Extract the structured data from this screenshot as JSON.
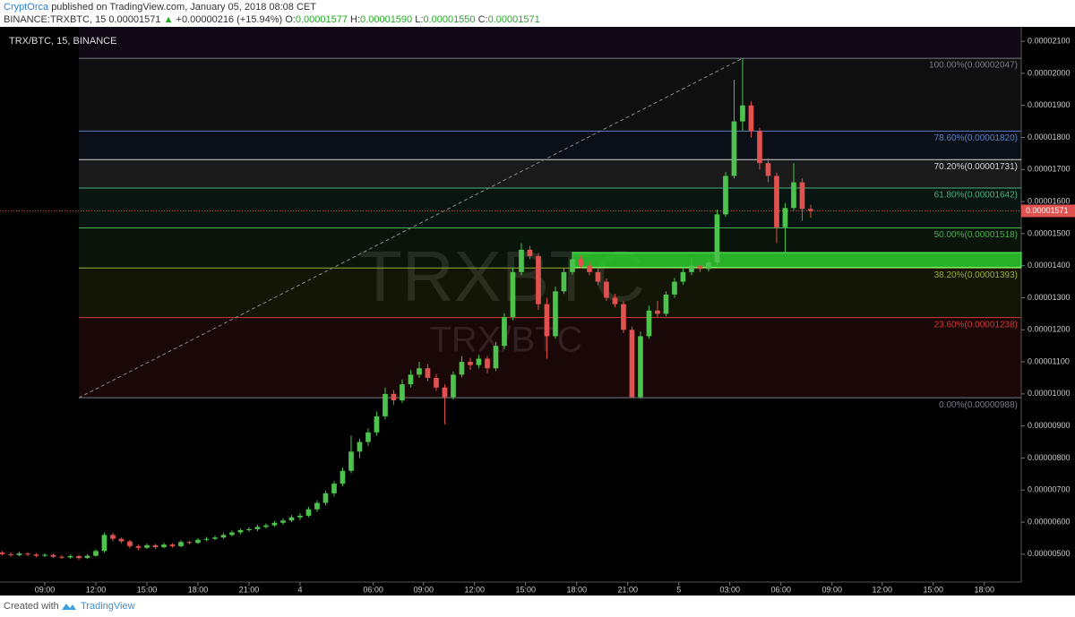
{
  "header": {
    "author": "CryptOrca",
    "published": "published on TradingView.com, January 05, 2018 08:08 CET",
    "symbol": "BINANCE:TRXBTC, 15",
    "last": "0.00001571",
    "arrow": "▲",
    "change": "+0.00000216 (+15.94%)",
    "o_key": "O:",
    "o": "0.00001577",
    "h_key": "H:",
    "h": "0.00001590",
    "l_key": "L:",
    "l": "0.00001550",
    "c_key": "C:",
    "c": "0.00001571"
  },
  "footer": {
    "created": "Created with",
    "brand": "TradingView"
  },
  "chart_data": {
    "type": "candlestick",
    "title": "TRX/BTC, 15, BINANCE",
    "watermark": "TRXBTC",
    "watermark_sub": "TRX/BTC",
    "up_color": "#4ec24e",
    "down_color": "#e0524f",
    "candles": [
      [
        5.05e-06,
        5.1e-06,
        4.96e-06,
        5e-06
      ],
      [
        5e-06,
        5.06e-06,
        4.92e-06,
        4.97e-06
      ],
      [
        4.97e-06,
        5.08e-06,
        4.94e-06,
        5.02e-06
      ],
      [
        5.02e-06,
        5.06e-06,
        4.94e-06,
        4.99e-06
      ],
      [
        4.99e-06,
        5.03e-06,
        4.9e-06,
        4.95e-06
      ],
      [
        4.95e-06,
        5.03e-06,
        4.9e-06,
        4.98e-06
      ],
      [
        4.98e-06,
        5.02e-06,
        4.88e-06,
        4.92e-06
      ],
      [
        4.92e-06,
        4.97e-06,
        4.85e-06,
        4.9e-06
      ],
      [
        4.9e-06,
        4.99e-06,
        4.86e-06,
        4.94e-06
      ],
      [
        4.94e-06,
        4.98e-06,
        4.82e-06,
        4.88e-06
      ],
      [
        4.88e-06,
        5e-06,
        4.85e-06,
        4.95e-06
      ],
      [
        4.95e-06,
        5.15e-06,
        4.92e-06,
        5.1e-06
      ],
      [
        5.1e-06,
        5.68e-06,
        5.05e-06,
        5.6e-06
      ],
      [
        5.6e-06,
        5.66e-06,
        5.4e-06,
        5.48e-06
      ],
      [
        5.48e-06,
        5.52e-06,
        5.34e-06,
        5.4e-06
      ],
      [
        5.4e-06,
        5.45e-06,
        5.18e-06,
        5.25e-06
      ],
      [
        5.25e-06,
        5.3e-06,
        5.12e-06,
        5.2e-06
      ],
      [
        5.2e-06,
        5.33e-06,
        5.16e-06,
        5.28e-06
      ],
      [
        5.28e-06,
        5.32e-06,
        5.16e-06,
        5.22e-06
      ],
      [
        5.22e-06,
        5.36e-06,
        5.18e-06,
        5.3e-06
      ],
      [
        5.3e-06,
        5.34e-06,
        5.2e-06,
        5.25e-06
      ],
      [
        5.25e-06,
        5.44e-06,
        5.22e-06,
        5.38e-06
      ],
      [
        5.38e-06,
        5.42e-06,
        5.3e-06,
        5.35e-06
      ],
      [
        5.35e-06,
        5.5e-06,
        5.32e-06,
        5.45e-06
      ],
      [
        5.45e-06,
        5.54e-06,
        5.4e-06,
        5.48e-06
      ],
      [
        5.48e-06,
        5.58e-06,
        5.44e-06,
        5.52e-06
      ],
      [
        5.52e-06,
        5.66e-06,
        5.48e-06,
        5.6e-06
      ],
      [
        5.6e-06,
        5.74e-06,
        5.55e-06,
        5.68e-06
      ],
      [
        5.68e-06,
        5.8e-06,
        5.62e-06,
        5.75e-06
      ],
      [
        5.75e-06,
        5.84e-06,
        5.7e-06,
        5.78e-06
      ],
      [
        5.78e-06,
        5.92e-06,
        5.72e-06,
        5.85e-06
      ],
      [
        5.85e-06,
        5.96e-06,
        5.8e-06,
        5.9e-06
      ],
      [
        5.9e-06,
        6.04e-06,
        5.85e-06,
        5.98e-06
      ],
      [
        5.98e-06,
        6.12e-06,
        5.92e-06,
        6.05e-06
      ],
      [
        6.05e-06,
        6.22e-06,
        6e-06,
        6.15e-06
      ],
      [
        6.15e-06,
        6.28e-06,
        6.06e-06,
        6.2e-06
      ],
      [
        6.2e-06,
        6.48e-06,
        6.15e-06,
        6.4e-06
      ],
      [
        6.4e-06,
        6.68e-06,
        6.32e-06,
        6.6e-06
      ],
      [
        6.6e-06,
        6.98e-06,
        6.52e-06,
        6.9e-06
      ],
      [
        6.9e-06,
        7.28e-06,
        6.8e-06,
        7.2e-06
      ],
      [
        7.2e-06,
        7.7e-06,
        7.12e-06,
        7.6e-06
      ],
      [
        7.6e-06,
        8.7e-06,
        7.52e-06,
        8.2e-06
      ],
      [
        8.2e-06,
        8.6e-06,
        8e-06,
        8.5e-06
      ],
      [
        8.5e-06,
        8.92e-06,
        8.38e-06,
        8.8e-06
      ],
      [
        8.8e-06,
        9.45e-06,
        8.7e-06,
        9.3e-06
      ],
      [
        9.3e-06,
        1.02e-05,
        9.2e-06,
        1e-05
      ],
      [
        1e-05,
        1.012e-05,
        9.65e-06,
        9.8e-06
      ],
      [
        9.8e-06,
        1.045e-05,
        9.72e-06,
        1.03e-05
      ],
      [
        1.03e-05,
        1.075e-05,
        1.02e-05,
        1.06e-05
      ],
      [
        1.06e-05,
        1.1e-05,
        1.05e-05,
        1.08e-05
      ],
      [
        1.08e-05,
        1.092e-05,
        1.04e-05,
        1.05e-05
      ],
      [
        1.05e-05,
        1.062e-05,
        1.01e-05,
        1.02e-05
      ],
      [
        1.02e-05,
        1.03e-05,
        9.05e-06,
        9.9e-06
      ],
      [
        9.9e-06,
        1.07e-05,
        9.82e-06,
        1.06e-05
      ],
      [
        1.06e-05,
        1.118e-05,
        1.052e-05,
        1.1e-05
      ],
      [
        1.1e-05,
        1.112e-05,
        1.075e-05,
        1.09e-05
      ],
      [
        1.09e-05,
        1.122e-05,
        1.08e-05,
        1.11e-05
      ],
      [
        1.11e-05,
        1.118e-05,
        1.065e-05,
        1.08e-05
      ],
      [
        1.08e-05,
        1.162e-05,
        1.072e-05,
        1.15e-05
      ],
      [
        1.15e-05,
        1.252e-05,
        1.14e-05,
        1.24e-05
      ],
      [
        1.24e-05,
        1.395e-05,
        1.23e-05,
        1.38e-05
      ],
      [
        1.38e-05,
        1.47e-05,
        1.37e-05,
        1.45e-05
      ],
      [
        1.45e-05,
        1.462e-05,
        1.42e-05,
        1.43e-05
      ],
      [
        1.43e-05,
        1.44e-05,
        1.262e-05,
        1.28e-05
      ],
      [
        1.28e-05,
        1.3e-05,
        1.11e-05,
        1.18e-05
      ],
      [
        1.18e-05,
        1.335e-05,
        1.172e-05,
        1.32e-05
      ],
      [
        1.32e-05,
        1.392e-05,
        1.312e-05,
        1.38e-05
      ],
      [
        1.38e-05,
        1.44e-05,
        1.372e-05,
        1.42e-05
      ],
      [
        1.42e-05,
        1.432e-05,
        1.392e-05,
        1.4e-05
      ],
      [
        1.4e-05,
        1.412e-05,
        1.37e-05,
        1.38e-05
      ],
      [
        1.38e-05,
        1.392e-05,
        1.34e-05,
        1.35e-05
      ],
      [
        1.35e-05,
        1.36e-05,
        1.29e-05,
        1.3e-05
      ],
      [
        1.3e-05,
        1.312e-05,
        1.27e-05,
        1.28e-05
      ],
      [
        1.28e-05,
        1.29e-05,
        1.19e-05,
        1.2e-05
      ],
      [
        1.2e-05,
        1.21e-05,
        9.88e-06,
        9.9e-06
      ],
      [
        9.9e-06,
        1.195e-05,
        9.85e-06,
        1.18e-05
      ],
      [
        1.18e-05,
        1.275e-05,
        1.172e-05,
        1.26e-05
      ],
      [
        1.26e-05,
        1.29e-05,
        1.24e-05,
        1.25e-05
      ],
      [
        1.25e-05,
        1.32e-05,
        1.242e-05,
        1.31e-05
      ],
      [
        1.31e-05,
        1.362e-05,
        1.3e-05,
        1.35e-05
      ],
      [
        1.35e-05,
        1.392e-05,
        1.34e-05,
        1.38e-05
      ],
      [
        1.38e-05,
        1.425e-05,
        1.37e-05,
        1.4e-05
      ],
      [
        1.4e-05,
        1.418e-05,
        1.38e-05,
        1.39e-05
      ],
      [
        1.39e-05,
        1.42e-05,
        1.382e-05,
        1.41e-05
      ],
      [
        1.41e-05,
        1.575e-05,
        1.402e-05,
        1.56e-05
      ],
      [
        1.56e-05,
        1.692e-05,
        1.552e-05,
        1.68e-05
      ],
      [
        1.68e-05,
        1.98e-05,
        1.672e-05,
        1.85e-05
      ],
      [
        1.85e-05,
        2.047e-05,
        1.82e-05,
        1.9e-05
      ],
      [
        1.9e-05,
        1.912e-05,
        1.8e-05,
        1.82e-05
      ],
      [
        1.82e-05,
        1.83e-05,
        1.7e-05,
        1.72e-05
      ],
      [
        1.72e-05,
        1.735e-05,
        1.66e-05,
        1.68e-05
      ],
      [
        1.68e-05,
        1.69e-05,
        1.47e-05,
        1.52e-05
      ],
      [
        1.52e-05,
        1.595e-05,
        1.44e-05,
        1.58e-05
      ],
      [
        1.58e-05,
        1.72e-05,
        1.572e-05,
        1.66e-05
      ],
      [
        1.66e-05,
        1.672e-05,
        1.54e-05,
        1.577e-05
      ],
      [
        1.577e-05,
        1.59e-05,
        1.55e-05,
        1.571e-05
      ]
    ],
    "xlim": [
      -0.26,
      119.74
    ],
    "xticks": [
      {
        "value": 5,
        "label": "09:00"
      },
      {
        "value": 11,
        "label": "12:00"
      },
      {
        "value": 17,
        "label": "15:00"
      },
      {
        "value": 23,
        "label": "18:00"
      },
      {
        "value": 29,
        "label": "21:00"
      },
      {
        "value": 35,
        "label": "4"
      },
      {
        "value": 43.6,
        "label": "06:00"
      },
      {
        "value": 49.5,
        "label": "09:00"
      },
      {
        "value": 55.5,
        "label": "12:00"
      },
      {
        "value": 61.5,
        "label": "15:00"
      },
      {
        "value": 67.5,
        "label": "18:00"
      },
      {
        "value": 73.5,
        "label": "21:00"
      },
      {
        "value": 79.5,
        "label": "5"
      },
      {
        "value": 85.5,
        "label": "03:00"
      },
      {
        "value": 91.5,
        "label": "06:00"
      },
      {
        "value": 97.5,
        "label": "09:00"
      },
      {
        "value": 103.4,
        "label": "12:00"
      },
      {
        "value": 109.4,
        "label": "15:00"
      },
      {
        "value": 115.4,
        "label": "18:00"
      }
    ],
    "ylim": [
      4.13e-06,
      2.145e-05
    ],
    "yticks": [
      {
        "value": 5e-06,
        "label": "0.00000500"
      },
      {
        "value": 6e-06,
        "label": "0.00000600"
      },
      {
        "value": 7e-06,
        "label": "0.00000700"
      },
      {
        "value": 8e-06,
        "label": "0.00000800"
      },
      {
        "value": 9e-06,
        "label": "0.00000900"
      },
      {
        "value": 1e-05,
        "label": "0.00001000"
      },
      {
        "value": 1.1e-05,
        "label": "0.00001100"
      },
      {
        "value": 1.2e-05,
        "label": "0.00001200"
      },
      {
        "value": 1.3e-05,
        "label": "0.00001300"
      },
      {
        "value": 1.4e-05,
        "label": "0.00001400"
      },
      {
        "value": 1.5e-05,
        "label": "0.00001500"
      },
      {
        "value": 1.6e-05,
        "label": "0.00001600"
      },
      {
        "value": 1.7e-05,
        "label": "0.00001700"
      },
      {
        "value": 1.8e-05,
        "label": "0.00001800"
      },
      {
        "value": 1.9e-05,
        "label": "0.00001900"
      },
      {
        "value": 2e-05,
        "label": "0.00002000"
      },
      {
        "value": 2.1e-05,
        "label": "0.00002100"
      }
    ],
    "last_price": {
      "value": 1.571e-05,
      "label": "0.00001571"
    },
    "zone": {
      "low": 1.395e-05,
      "high": 1.441e-05,
      "start": 67,
      "color": "#2ecc2e"
    },
    "fib": [
      {
        "value": 2.047e-05,
        "label": "100.00%(0.00002047)",
        "color": "#787b86"
      },
      {
        "value": 1.82e-05,
        "label": "78.60%(0.00001820)",
        "color": "#5b7ec2"
      },
      {
        "value": 1.731e-05,
        "label": "70.20%(0.00001731)",
        "color": "#d6d6d6"
      },
      {
        "value": 1.642e-05,
        "label": "61.80%(0.00001642)",
        "color": "#4caf80"
      },
      {
        "value": 1.518e-05,
        "label": "50.00%(0.00001518)",
        "color": "#4caf50"
      },
      {
        "value": 1.393e-05,
        "label": "38.20%(0.00001393)",
        "color": "#9aae36"
      },
      {
        "value": 1.238e-05,
        "label": "23.60%(0.00001238)",
        "color": "#d33a3a"
      },
      {
        "value": 9.88e-06,
        "label": "0.00%(0.00000988)",
        "color": "#787b86"
      }
    ]
  }
}
